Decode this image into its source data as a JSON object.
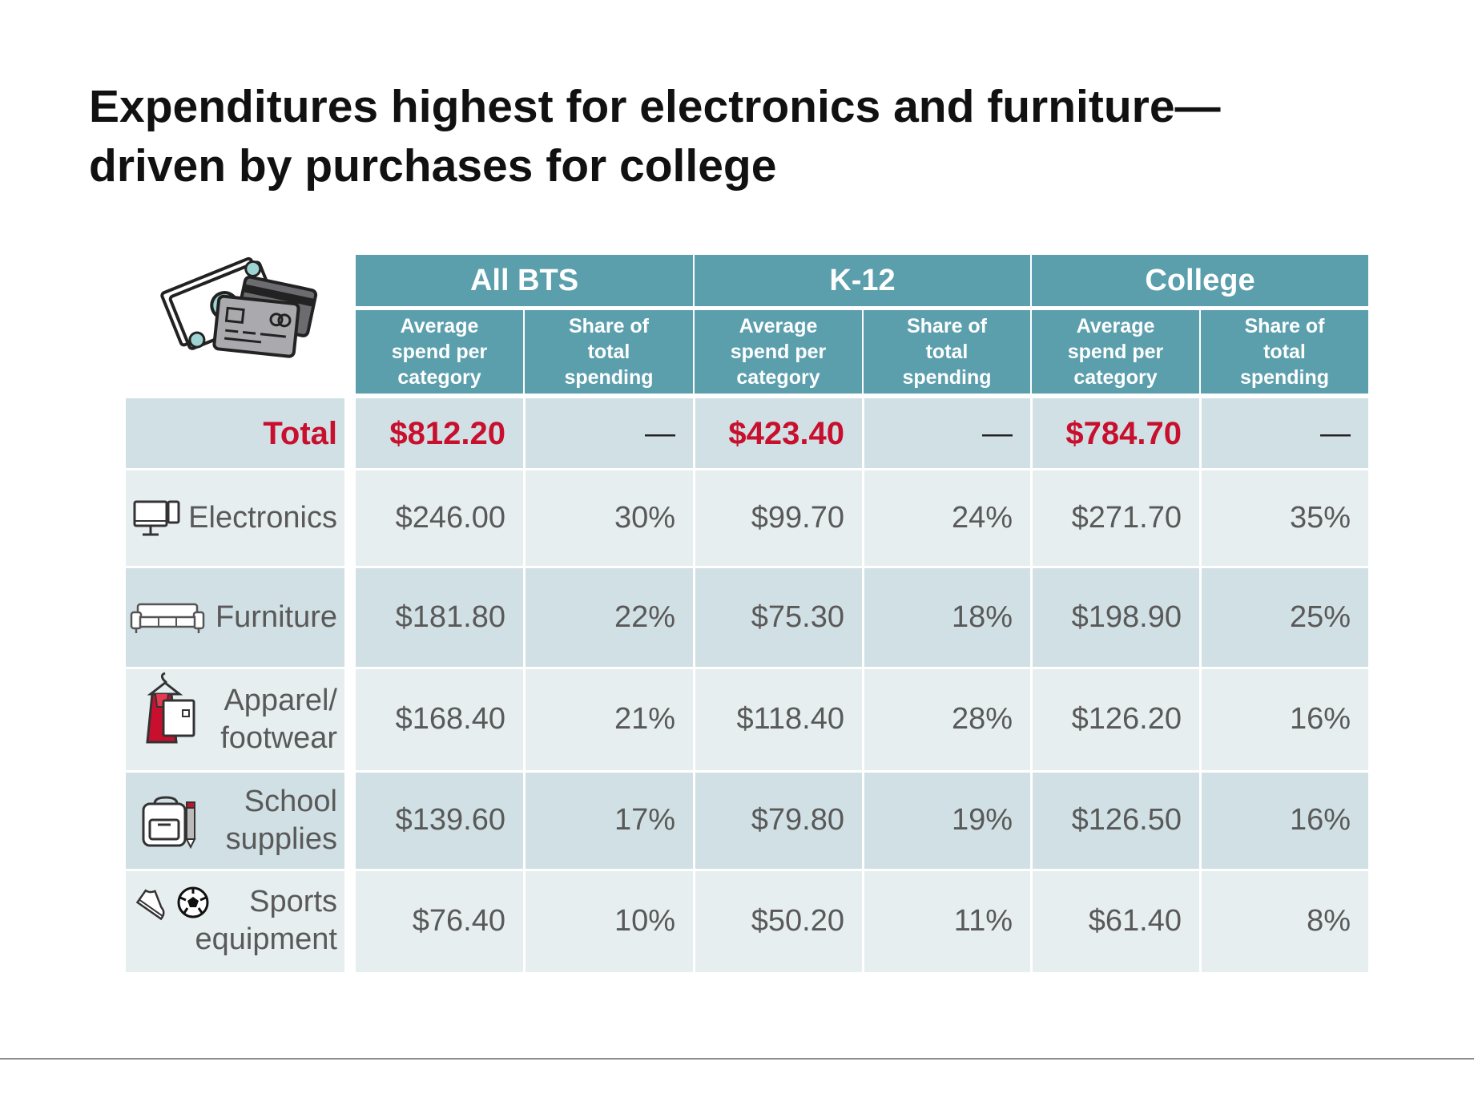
{
  "title": {
    "line1": "Expenditures highest for electronics and furniture—",
    "line2": "driven by purchases for college"
  },
  "colors": {
    "header": "#5b9fad",
    "row_light": "#e6eef0",
    "row_dark": "#d1e0e4",
    "total_red": "#c8102e",
    "text_gray": "#595959"
  },
  "icons": {
    "header": "money-and-credit-cards-icon",
    "rows": [
      "",
      "computer-monitor-and-phone-icon",
      "sofa-icon",
      "clothing-on-hanger-icon",
      "backpack-and-pencil-icon",
      "sneaker-and-soccer-ball-icon"
    ]
  },
  "chart_data": {
    "type": "table",
    "column_groups": [
      "All BTS",
      "K-12",
      "College"
    ],
    "sub_columns": [
      "Average\nspend per\ncategory",
      "Share of\ntotal\nspending"
    ],
    "rows": [
      {
        "label": "Total",
        "values": [
          "$812.20",
          "—",
          "$423.40",
          "—",
          "$784.70",
          "—"
        ]
      },
      {
        "label": "Electronics",
        "values": [
          "$246.00",
          "30%",
          "$99.70",
          "24%",
          "$271.70",
          "35%"
        ]
      },
      {
        "label": "Furniture",
        "values": [
          "$181.80",
          "22%",
          "$75.30",
          "18%",
          "$198.90",
          "25%"
        ]
      },
      {
        "label": "Apparel/\nfootwear",
        "values": [
          "$168.40",
          "21%",
          "$118.40",
          "28%",
          "$126.20",
          "16%"
        ]
      },
      {
        "label": "School\nsupplies",
        "values": [
          "$139.60",
          "17%",
          "$79.80",
          "19%",
          "$126.50",
          "16%"
        ]
      },
      {
        "label": "Sports\nequipment",
        "values": [
          "$76.40",
          "10%",
          "$50.20",
          "11%",
          "$61.40",
          "8%"
        ]
      }
    ]
  }
}
